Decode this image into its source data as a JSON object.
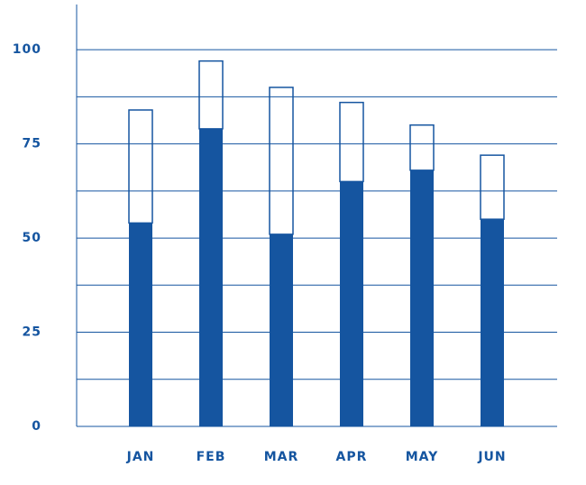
{
  "chart_data": {
    "type": "stacked_bar",
    "categories": [
      "JAN",
      "FEB",
      "MAR",
      "APR",
      "MAY",
      "JUN"
    ],
    "series": [
      {
        "color": "#1555a0",
        "fill": "solid",
        "values": [
          54,
          79,
          51,
          65,
          68,
          55
        ]
      },
      {
        "color": "#1555a0",
        "fill": "outline",
        "values": [
          30,
          18,
          39,
          21,
          12,
          17
        ]
      }
    ],
    "ylim": [
      0,
      112
    ],
    "yticks": [
      0,
      25,
      50,
      75,
      100
    ],
    "minor_yticks": [
      12.5,
      37.5,
      62.5,
      87.5
    ],
    "grid": true
  }
}
